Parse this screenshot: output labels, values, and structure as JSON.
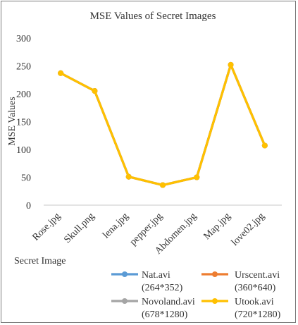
{
  "chart_data": {
    "type": "line",
    "title": "MSE Values of Secret Images",
    "xlabel": "Secret Image",
    "ylabel": "MSE Values",
    "ylim": [
      0,
      300
    ],
    "yticks": [
      0,
      50,
      100,
      150,
      200,
      250,
      300
    ],
    "grid": false,
    "legend_position": "bottom",
    "categories": [
      "Rose.jpg",
      "Skull.png",
      "lena.jpg",
      "pepper.jpg",
      "Abdomen.jpg",
      "Map.jpg",
      "love02.jpg"
    ],
    "series": [
      {
        "name": "Nat.avi (264*352)",
        "line1": "Nat.avi",
        "line2": "(264*352)",
        "color": "#5B9BD5",
        "values": [
          237,
          205,
          51,
          36,
          50,
          252,
          107
        ]
      },
      {
        "name": "Urscent.avi (360*640)",
        "line1": "Urscent.avi",
        "line2": "(360*640)",
        "color": "#ED7D31",
        "values": [
          237,
          205,
          51,
          36,
          50,
          252,
          107
        ]
      },
      {
        "name": "Novoland.avi (678*1280)",
        "line1": "Novoland.avi",
        "line2": "(678*1280)",
        "color": "#A5A5A5",
        "values": [
          237,
          205,
          51,
          36,
          50,
          252,
          107
        ]
      },
      {
        "name": "Utook.avi (720*1280)",
        "line1": "Utook.avi",
        "line2": "(720*1280)",
        "color": "#FFC000",
        "values": [
          237,
          205,
          51,
          36,
          50,
          252,
          107
        ]
      }
    ]
  }
}
